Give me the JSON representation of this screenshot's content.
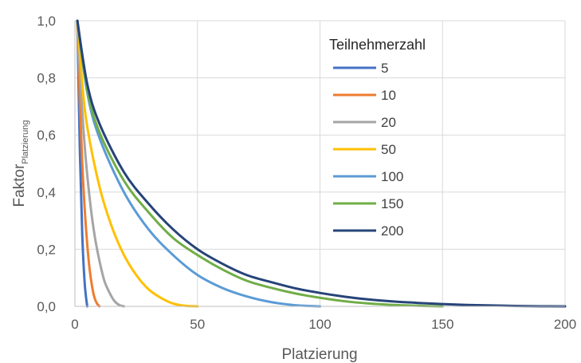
{
  "chart_data": {
    "type": "line",
    "title": "",
    "xlabel": "Platzierung",
    "ylabel": "Faktor",
    "ylabel_subscript": "Platzierung",
    "xlim": [
      0,
      200
    ],
    "ylim": [
      0,
      1.0
    ],
    "x_ticks": [
      "0",
      "50",
      "100",
      "150",
      "200"
    ],
    "y_ticks": [
      "0,0",
      "0,2",
      "0,4",
      "0,6",
      "0,8",
      "1,0"
    ],
    "grid": true,
    "legend": {
      "title": "Teilnehmerzahl",
      "placement": "top-right"
    },
    "series": [
      {
        "name": "5",
        "color": "#4472C4",
        "x": [
          1,
          2,
          3,
          4,
          5
        ],
        "y": [
          1.0,
          0.55,
          0.25,
          0.08,
          0.0
        ]
      },
      {
        "name": "10",
        "color": "#ED7D31",
        "x": [
          1,
          2,
          3,
          4,
          5,
          6,
          7,
          8,
          9,
          10
        ],
        "y": [
          1.0,
          0.72,
          0.5,
          0.34,
          0.22,
          0.13,
          0.07,
          0.03,
          0.01,
          0.0
        ]
      },
      {
        "name": "20",
        "color": "#A5A5A5",
        "x": [
          1,
          2,
          4,
          6,
          8,
          10,
          12,
          14,
          16,
          18,
          20
        ],
        "y": [
          1.0,
          0.82,
          0.56,
          0.38,
          0.25,
          0.16,
          0.09,
          0.05,
          0.02,
          0.005,
          0.0
        ]
      },
      {
        "name": "50",
        "color": "#FFC000",
        "x": [
          1,
          3,
          5,
          10,
          15,
          20,
          25,
          30,
          35,
          40,
          45,
          50
        ],
        "y": [
          1.0,
          0.78,
          0.63,
          0.42,
          0.28,
          0.18,
          0.11,
          0.06,
          0.03,
          0.01,
          0.002,
          0.0
        ]
      },
      {
        "name": "100",
        "color": "#5B9BD5",
        "x": [
          1,
          5,
          10,
          20,
          30,
          40,
          50,
          60,
          70,
          80,
          90,
          100
        ],
        "y": [
          1.0,
          0.75,
          0.59,
          0.4,
          0.27,
          0.18,
          0.11,
          0.065,
          0.035,
          0.015,
          0.004,
          0.0
        ]
      },
      {
        "name": "150",
        "color": "#70AD47",
        "x": [
          1,
          5,
          10,
          20,
          30,
          40,
          50,
          60,
          70,
          80,
          90,
          100,
          110,
          120,
          130,
          140,
          150
        ],
        "y": [
          1.0,
          0.76,
          0.61,
          0.44,
          0.33,
          0.24,
          0.18,
          0.13,
          0.09,
          0.065,
          0.045,
          0.03,
          0.018,
          0.01,
          0.005,
          0.002,
          0.0
        ]
      },
      {
        "name": "200",
        "color": "#264478",
        "x": [
          1,
          5,
          10,
          20,
          30,
          40,
          50,
          60,
          70,
          80,
          90,
          100,
          110,
          120,
          130,
          140,
          150,
          160,
          170,
          180,
          190,
          200
        ],
        "y": [
          1.0,
          0.78,
          0.64,
          0.47,
          0.36,
          0.27,
          0.2,
          0.15,
          0.11,
          0.085,
          0.063,
          0.047,
          0.034,
          0.024,
          0.017,
          0.012,
          0.008,
          0.005,
          0.003,
          0.0015,
          0.0005,
          0.0
        ]
      }
    ]
  }
}
